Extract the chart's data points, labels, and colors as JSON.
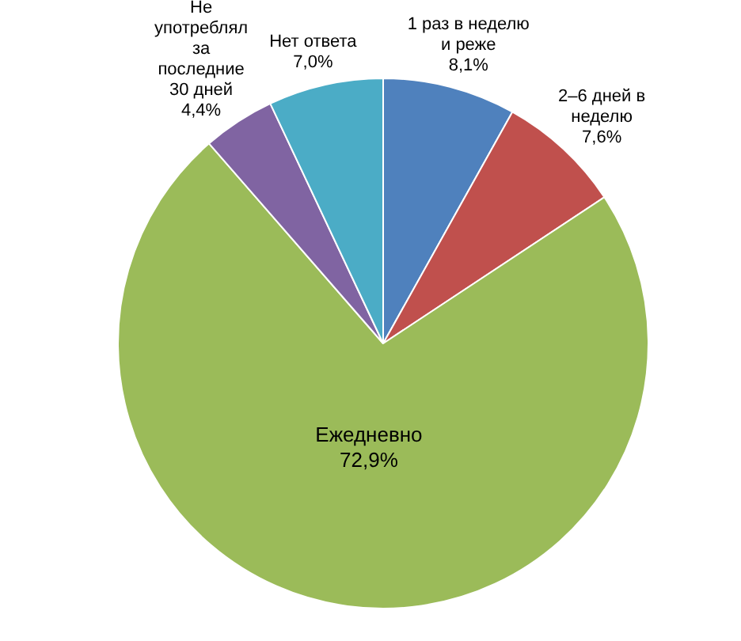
{
  "chart_data": {
    "type": "pie",
    "categories": [
      "1 раз в неделю и реже",
      "2–6 дней в неделю",
      "Ежедневно",
      "Не употреблял за последние 30 дней",
      "Нет ответа"
    ],
    "values": [
      8.1,
      7.6,
      72.9,
      4.4,
      7.0
    ],
    "colors": [
      "#4f81bd",
      "#c0504d",
      "#9bbb59",
      "#8064a2",
      "#4bacc6"
    ],
    "value_labels": [
      "8,1%",
      "7,6%",
      "72,9%",
      "4,4%",
      "7,0%"
    ]
  }
}
